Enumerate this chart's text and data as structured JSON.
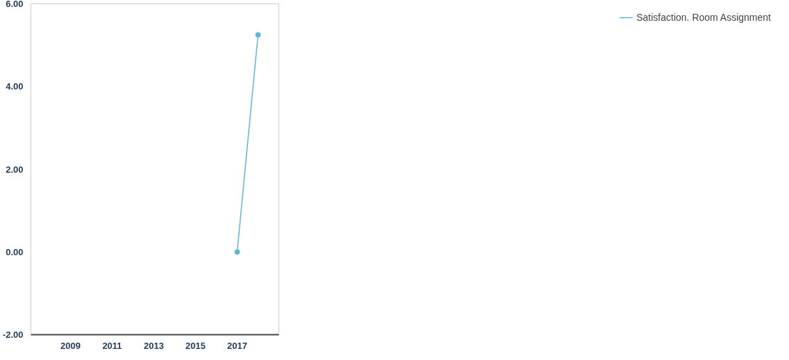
{
  "chart_data": {
    "type": "line",
    "x": [
      2017,
      2018
    ],
    "series": [
      {
        "name": "Satisfaction. Room Assignment",
        "color": "#5bb8d9",
        "values": [
          0,
          5.25
        ]
      }
    ],
    "xlim": [
      2007.1,
      2019
    ],
    "xticks": [
      2009,
      2011,
      2013,
      2015,
      2017
    ],
    "ylim": [
      -2,
      6
    ],
    "yticks": [
      {
        "value": -2,
        "label": "-2.00"
      },
      {
        "value": 0,
        "label": "0.00"
      },
      {
        "value": 2,
        "label": "2.00"
      },
      {
        "value": 4,
        "label": "4.00"
      },
      {
        "value": 6,
        "label": "6.00"
      }
    ],
    "grid": false,
    "legend": "right",
    "marker": "circle",
    "line_style": "solid"
  }
}
